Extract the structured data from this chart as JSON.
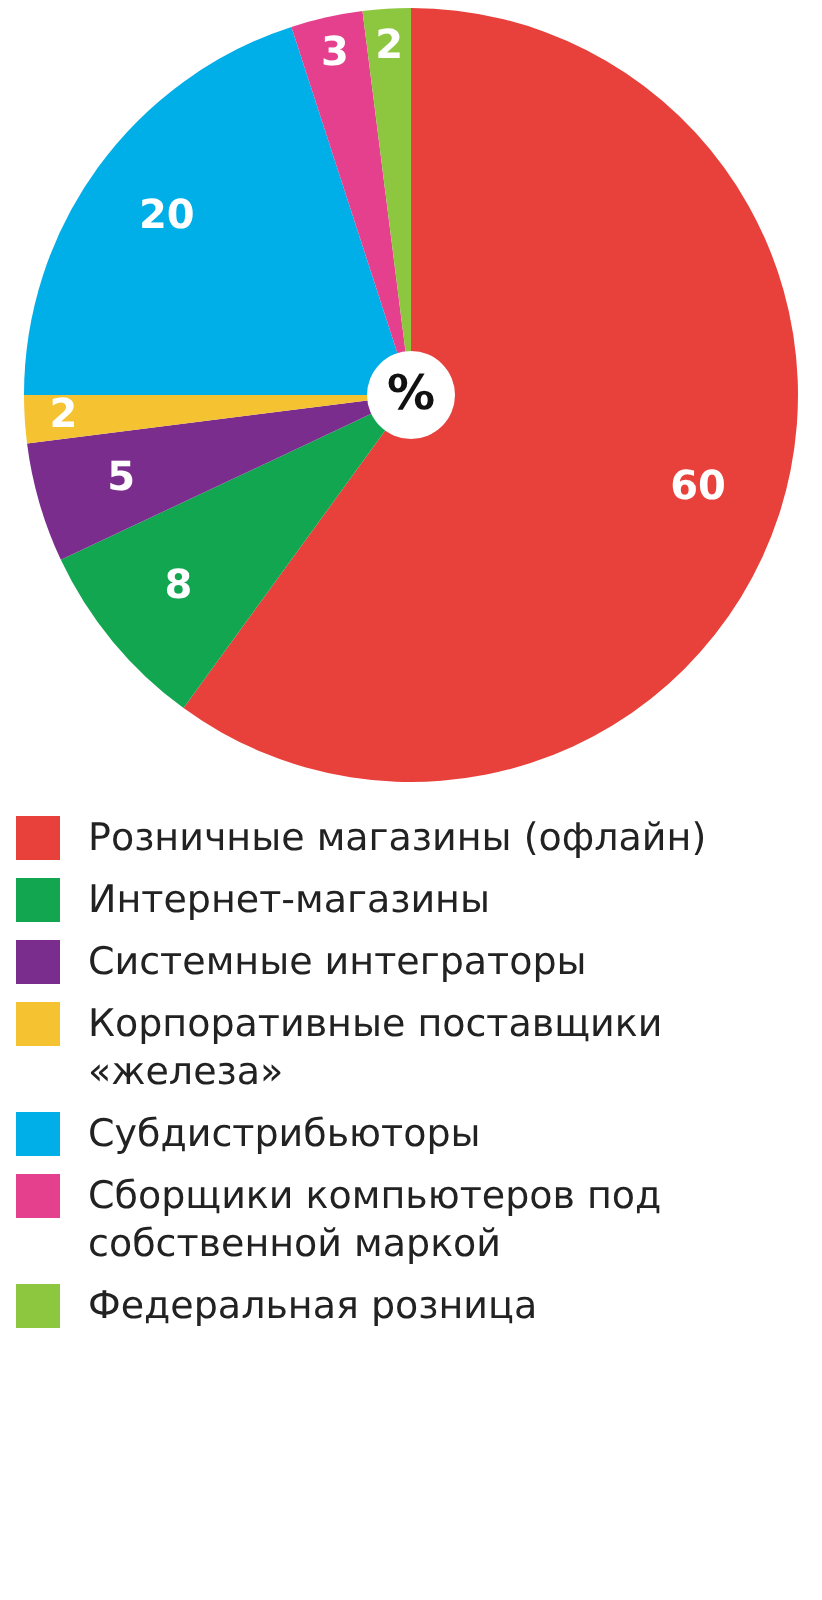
{
  "chart_data": {
    "type": "pie",
    "categories": [
      "Розничные магазины (офлайн)",
      "Интернет-магазины",
      "Системные интеграторы",
      "Корпоративные поставщики «железа»",
      "Субдистрибьюторы",
      "Сборщики компьютеров под собственной маркой",
      "Федеральная розница"
    ],
    "values": [
      60,
      8,
      5,
      2,
      20,
      3,
      2
    ],
    "colors": [
      "#e8403a",
      "#12a650",
      "#7b2d8e",
      "#f5c232",
      "#00aee8",
      "#e5408e",
      "#8dc63f"
    ],
    "data_labels": true,
    "legend": "bottom",
    "annotations": [
      "%"
    ]
  }
}
